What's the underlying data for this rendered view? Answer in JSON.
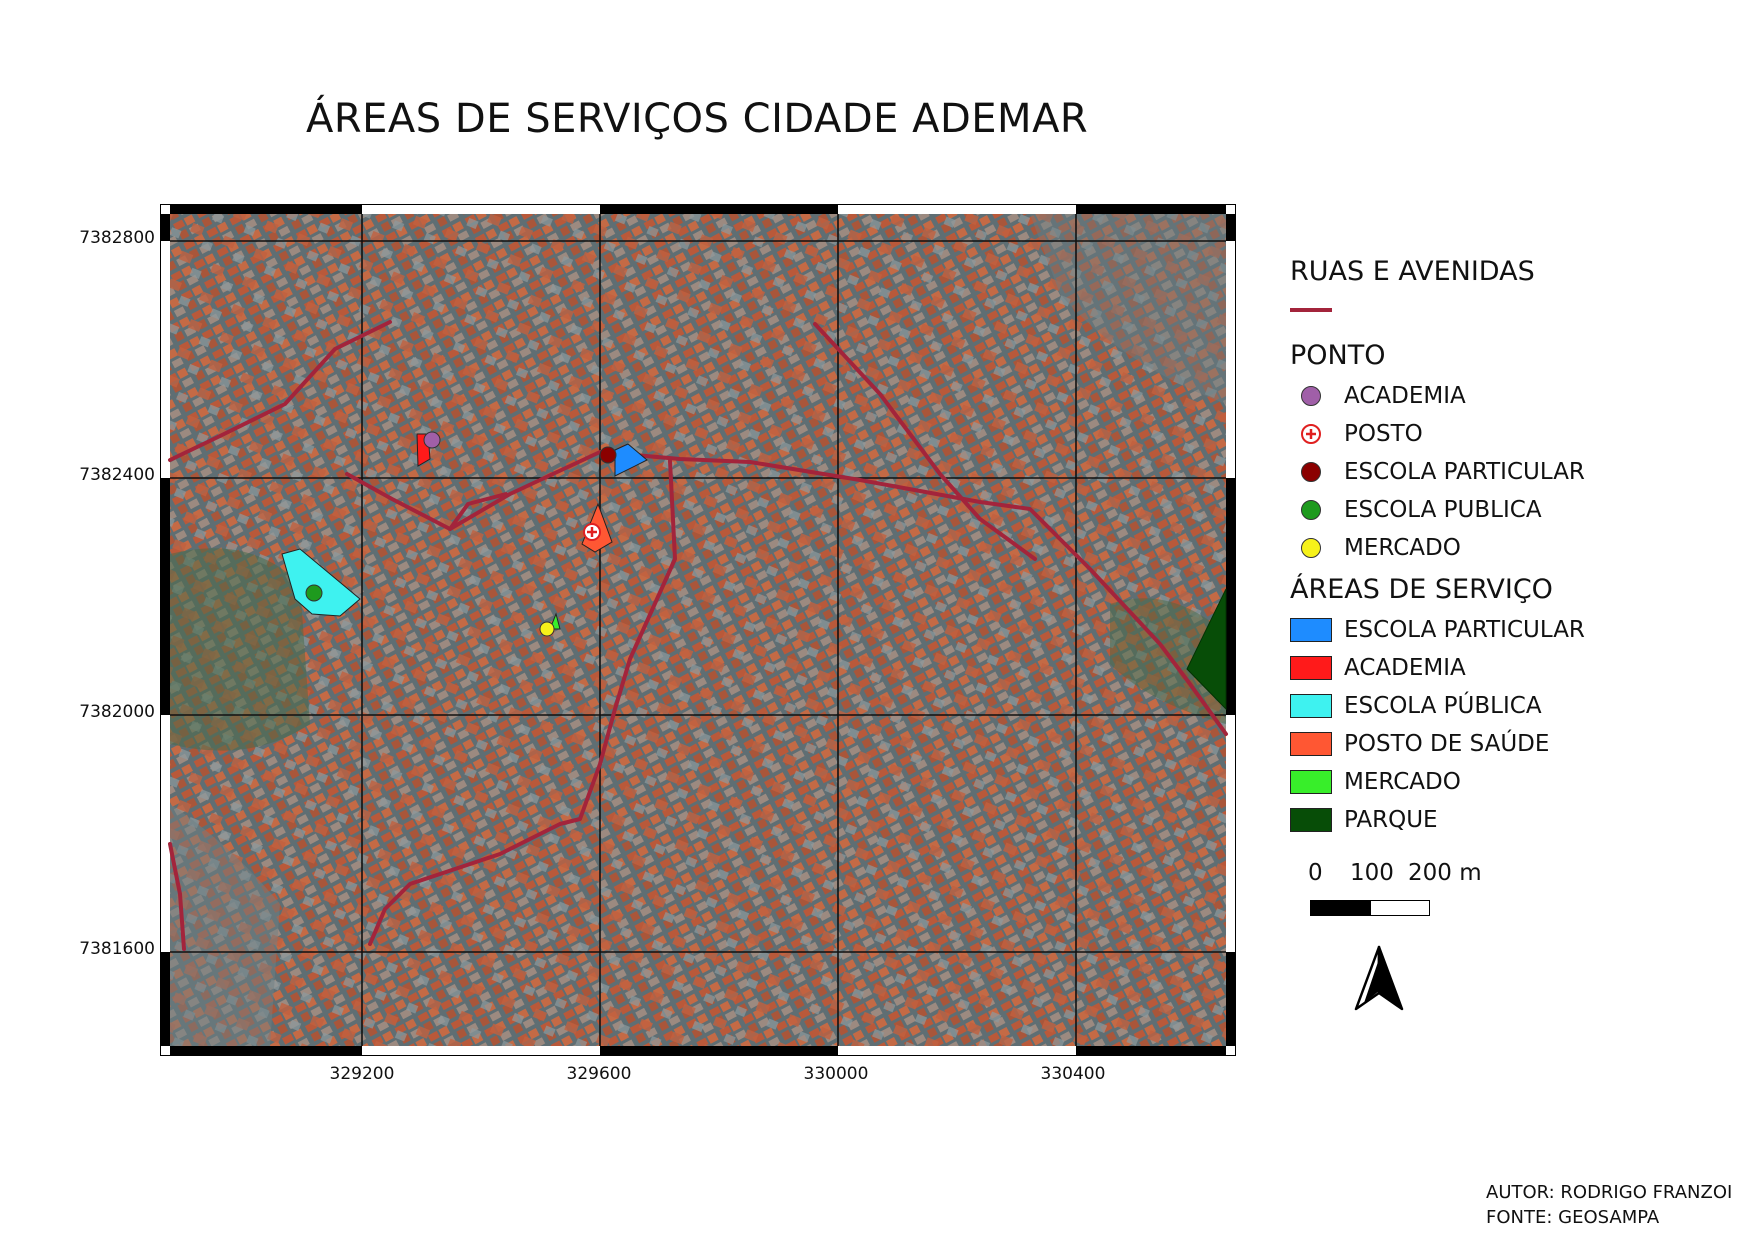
{
  "title": "ÁREAS DE SERVIÇOS CIDADE ADEMAR",
  "map": {
    "grid_y_labels": [
      "7382800",
      "7382400",
      "7382000",
      "7381600"
    ],
    "grid_x_labels": [
      "329200",
      "329600",
      "330000",
      "330400"
    ],
    "colors": {
      "road": "#a3243b",
      "imagery_base": "#5f6e73",
      "roofs": "#b9593a"
    }
  },
  "legend": {
    "roads_title": "RUAS E AVENIDAS",
    "roads_color": "#a3243b",
    "points_title": "PONTO",
    "points": [
      {
        "label": "ACADEMIA",
        "color": "#a05fa8",
        "icon": "circle"
      },
      {
        "label": "POSTO",
        "color": "#e02020",
        "icon": "cross-circle"
      },
      {
        "label": "ESCOLA PARTICULAR",
        "color": "#8b0000",
        "icon": "circle"
      },
      {
        "label": "ESCOLA PUBLICA",
        "color": "#1e9a1e",
        "icon": "circle"
      },
      {
        "label": "MERCADO",
        "color": "#f6f21a",
        "icon": "circle"
      }
    ],
    "areas_title": "ÁREAS DE SERVIÇO",
    "areas": [
      {
        "label": "ESCOLA PARTICULAR",
        "color": "#1e8cff"
      },
      {
        "label": "ACADEMIA",
        "color": "#ff1a1a"
      },
      {
        "label": "ESCOLA PÚBLICA",
        "color": "#3ef2f0"
      },
      {
        "label": "POSTO DE SAÚDE",
        "color": "#ff5733"
      },
      {
        "label": "MERCADO",
        "color": "#38ee2a"
      },
      {
        "label": "PARQUE",
        "color": "#074d07"
      }
    ]
  },
  "scale_bar": {
    "labels": [
      "0",
      "100",
      "200 m"
    ]
  },
  "credits": {
    "author": "AUTOR: RODRIGO FRANZOI",
    "source": "FONTE: GEOSAMPA"
  }
}
